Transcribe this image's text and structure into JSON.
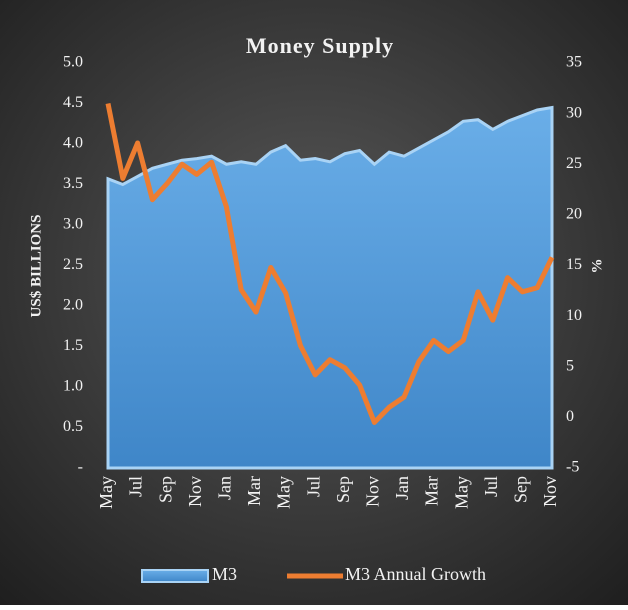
{
  "chart_data": {
    "type": "area-line",
    "title": "Money Supply",
    "y_label": "US$ BILLIONS",
    "y2_label": "%",
    "categories": [
      "May",
      null,
      "Jul",
      null,
      "Sep",
      null,
      "Nov",
      null,
      "Jan",
      null,
      "Mar",
      null,
      "May",
      null,
      "Jul",
      null,
      "Sep",
      null,
      "Nov",
      null,
      "Jan",
      null,
      "Mar",
      null,
      "May",
      null,
      "Jul",
      null,
      "Sep",
      null,
      "Nov"
    ],
    "series": [
      {
        "name": "M3",
        "type": "area",
        "color": "#5b9bd5",
        "values": [
          3.57,
          3.5,
          3.6,
          3.7,
          3.75,
          3.8,
          3.82,
          3.85,
          3.75,
          3.78,
          3.75,
          3.9,
          3.98,
          3.8,
          3.82,
          3.78,
          3.88,
          3.92,
          3.75,
          3.9,
          3.85,
          3.95,
          4.05,
          4.15,
          4.28,
          4.3,
          4.18,
          4.28,
          4.35,
          4.42,
          4.45
        ]
      },
      {
        "name": "M3 Annual Growth",
        "type": "line",
        "axis": "y2",
        "color": "#ed7d31",
        "values": [
          31,
          23.6,
          27.1,
          21.5,
          23.1,
          25,
          24,
          25.2,
          20.8,
          12.6,
          10.4,
          14.8,
          12.3,
          7.1,
          4.2,
          5.7,
          4.9,
          3.2,
          -0.5,
          1,
          2,
          5.5,
          7.6,
          6.5,
          7.6,
          12.4,
          9.6,
          13.8,
          12.4,
          12.8,
          15.8
        ]
      }
    ],
    "ylim": [
      0,
      5
    ],
    "yticks": [
      {
        "value": 0,
        "label": "-"
      },
      0.5,
      {
        "value": 1,
        "label": "1.0"
      },
      1.5,
      {
        "value": 2,
        "label": "2.0"
      },
      2.5,
      {
        "value": 3,
        "label": "3.0"
      },
      3.5,
      {
        "value": 4,
        "label": "4.0"
      },
      4.5,
      {
        "value": 5,
        "label": "5.0"
      }
    ],
    "y2lim": [
      -5,
      35
    ],
    "y2ticks": [
      -5,
      0,
      5,
      10,
      15,
      20,
      25,
      30,
      35
    ],
    "legend": "bottom"
  }
}
